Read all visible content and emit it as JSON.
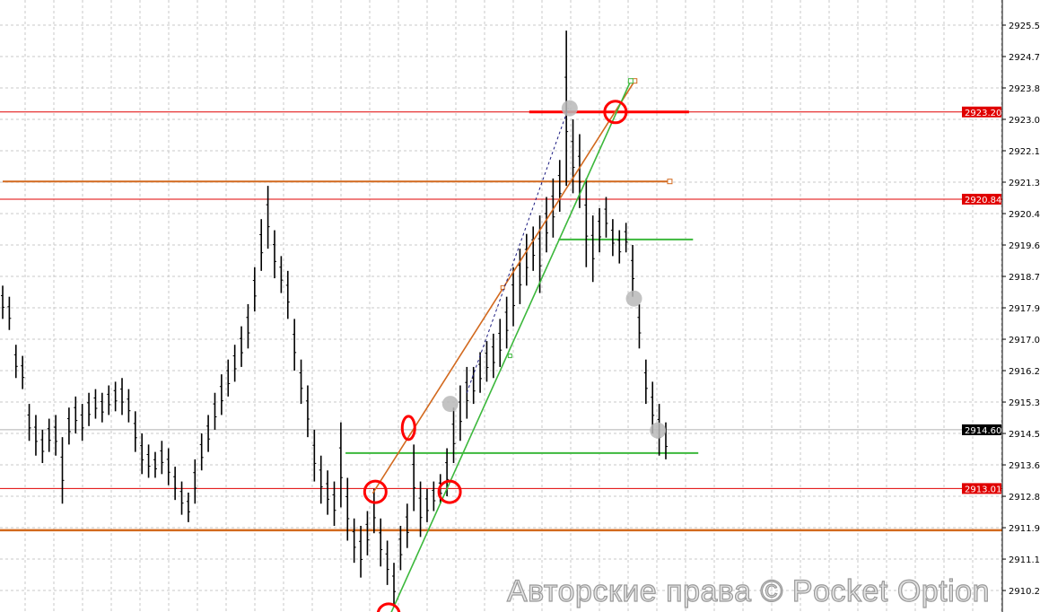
{
  "chart_data": {
    "type": "bar",
    "style": "ohlc-bars",
    "ylim": [
      2909.6,
      2926.2
    ],
    "grid": true,
    "y_ticks": [
      "2925.55",
      "2924.70",
      "2923.85",
      "2923.00",
      "2922.15",
      "2921.30",
      "2920.45",
      "2919.60",
      "2918.75",
      "2917.90",
      "2917.05",
      "2916.20",
      "2915.35",
      "2914.50",
      "2913.65",
      "2912.80",
      "2911.95",
      "2911.10",
      "2910.25"
    ],
    "bars": {
      "high": [
        2918.5,
        2918.2,
        2916.9,
        2916.6,
        2915.3,
        2915.0,
        2914.6,
        2914.9,
        2915.0,
        2914.4,
        2915.2,
        2915.5,
        2915.3,
        2915.6,
        2915.7,
        2915.6,
        2915.8,
        2915.9,
        2916.0,
        2915.7,
        2915.1,
        2914.5,
        2914.2,
        2914.0,
        2914.3,
        2914.1,
        2913.6,
        2913.2,
        2912.9,
        2913.8,
        2914.5,
        2915.0,
        2915.6,
        2916.1,
        2916.5,
        2916.9,
        2917.4,
        2918.0,
        2919.0,
        2920.3,
        2921.2,
        2920.0,
        2919.3,
        2918.9,
        2917.6,
        2916.5,
        2915.8,
        2914.6,
        2913.9,
        2913.5,
        2913.2,
        2914.8,
        2913.3,
        2912.2,
        2912.0,
        2912.4,
        2913.0,
        2912.2,
        2911.6,
        2911.0,
        2912.0,
        2912.6,
        2914.2,
        2913.2,
        2913.0,
        2913.2,
        2913.4,
        2914.1,
        2915.2,
        2915.8,
        2916.3,
        2916.3,
        2916.7,
        2917.0,
        2917.2,
        2917.6,
        2918.2,
        2919.0,
        2919.5,
        2919.9,
        2920.1,
        2920.4,
        2920.9,
        2921.4,
        2921.9,
        2925.4,
        2923.0,
        2922.6,
        2921.4,
        2920.4,
        2920.6,
        2920.9,
        2920.3,
        2920.0,
        2920.2,
        2919.6,
        2918.0,
        2916.5,
        2915.9,
        2915.3,
        2914.8
      ],
      "low": [
        2917.6,
        2917.3,
        2916.0,
        2915.7,
        2914.3,
        2913.9,
        2913.7,
        2914.0,
        2913.9,
        2912.6,
        2914.2,
        2914.5,
        2914.3,
        2914.7,
        2914.9,
        2914.8,
        2915.0,
        2915.1,
        2915.0,
        2914.8,
        2914.0,
        2913.4,
        2913.3,
        2913.3,
        2913.4,
        2913.1,
        2912.7,
        2912.3,
        2912.1,
        2912.6,
        2913.5,
        2914.0,
        2914.6,
        2915.0,
        2915.5,
        2915.9,
        2916.3,
        2916.8,
        2917.8,
        2918.9,
        2919.5,
        2918.7,
        2918.3,
        2917.6,
        2916.2,
        2915.3,
        2914.4,
        2913.2,
        2912.6,
        2912.3,
        2912.0,
        2912.5,
        2911.6,
        2911.0,
        2910.6,
        2911.2,
        2911.8,
        2910.9,
        2910.4,
        2909.8,
        2910.8,
        2911.4,
        2912.4,
        2911.7,
        2912.1,
        2912.4,
        2912.6,
        2912.8,
        2913.7,
        2914.3,
        2914.9,
        2915.3,
        2915.6,
        2915.9,
        2916.0,
        2916.3,
        2916.8,
        2917.4,
        2918.0,
        2918.5,
        2918.9,
        2918.3,
        2919.4,
        2919.8,
        2920.5,
        2921.2,
        2921.0,
        2920.6,
        2919.0,
        2918.6,
        2919.4,
        2919.8,
        2919.3,
        2919.1,
        2919.4,
        2918.2,
        2916.8,
        2915.3,
        2914.5,
        2913.9,
        2913.8
      ]
    },
    "horizontal_levels": [
      {
        "price": 2923.2,
        "color": "#e00000",
        "kind": "thin-full",
        "label": "2923.20"
      },
      {
        "price": 2920.84,
        "color": "#e00000",
        "kind": "thin-full",
        "label": "2920.84"
      },
      {
        "price": 2914.6,
        "color": "#b0b0b0",
        "kind": "current-price",
        "label": "2914.60"
      },
      {
        "price": 2913.01,
        "color": "#e00000",
        "kind": "thin-full",
        "label": "2913.01"
      },
      {
        "price": 2911.88,
        "color": "#d2691e",
        "kind": "thick-full"
      },
      {
        "price": 2921.32,
        "color": "#d2691e",
        "kind": "segment",
        "from_bar": 0,
        "to_bar": 100.6
      },
      {
        "price": 2923.2,
        "color": "#ff0000",
        "kind": "thick-segment",
        "from_bar": 79.4,
        "to_bar": 103.5
      },
      {
        "price": 2919.75,
        "color": "#3cb83c",
        "kind": "segment",
        "from_bar": 83.8,
        "to_bar": 104.1
      },
      {
        "price": 2913.97,
        "color": "#3cb83c",
        "kind": "segment",
        "from_bar": 51.7,
        "to_bar": 104.9
      }
    ],
    "trendlines": [
      {
        "color": "#d2691e",
        "from": [
          55.8,
          2912.88
        ],
        "to": [
          95.3,
          2924.04
        ],
        "mid": [
          75.4,
          2918.45
        ]
      },
      {
        "color": "#3cb83c",
        "from": [
          58.2,
          2909.5
        ],
        "to": [
          94.7,
          2924.04
        ],
        "mid": [
          76.5,
          2916.6
        ]
      },
      {
        "color": "#1a1a80",
        "dashed": true,
        "from": [
          70,
          2915.6
        ],
        "to": [
          85.3,
          2923.3
        ]
      }
    ],
    "red_circles": [
      [
        56.2,
        2912.92
      ],
      [
        61.2,
        2914.65
      ],
      [
        67.4,
        2912.92
      ],
      [
        92.4,
        2923.2
      ],
      [
        58.2,
        2909.6
      ]
    ],
    "gray_markers": [
      [
        85.5,
        2923.3
      ],
      [
        67.5,
        2915.3
      ],
      [
        95.2,
        2918.15
      ],
      [
        98.8,
        2914.58
      ]
    ],
    "price_labels": [
      {
        "text": "2923.20",
        "price": 2923.2,
        "bg": "#e00000"
      },
      {
        "text": "2920.84",
        "price": 2920.84,
        "bg": "#e00000"
      },
      {
        "text": "2914.60",
        "price": 2914.6,
        "bg": "#000000"
      },
      {
        "text": "2913.01",
        "price": 2913.01,
        "bg": "#e00000"
      }
    ]
  },
  "watermark": "Авторские права © Pocket Option"
}
